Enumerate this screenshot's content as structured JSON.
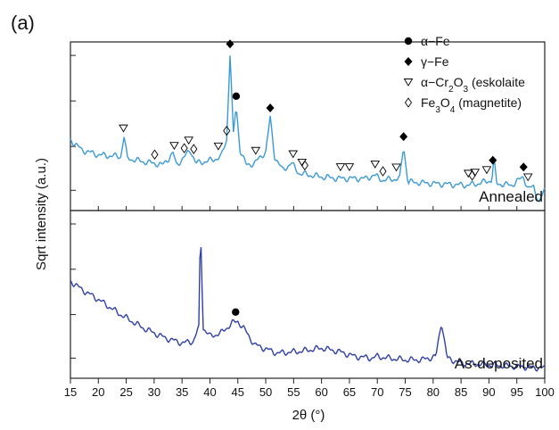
{
  "figure": {
    "panel_label": "(a)"
  },
  "chart_data": {
    "type": "line",
    "xlabel": "2θ (°)",
    "ylabel": "Sqrt intensity (a.u.)",
    "xlim": [
      15,
      100
    ],
    "x_ticks": [
      15,
      20,
      25,
      30,
      35,
      40,
      45,
      50,
      55,
      60,
      65,
      70,
      75,
      80,
      85,
      90,
      95,
      100
    ],
    "grid": false,
    "legend_position": "top-right",
    "panels": [
      {
        "name": "Annealed",
        "color": "#3b9ad6",
        "series_points": [
          [
            15,
            0.42
          ],
          [
            17,
            0.36
          ],
          [
            20,
            0.33
          ],
          [
            24,
            0.32
          ],
          [
            24.6,
            0.44
          ],
          [
            25.2,
            0.31
          ],
          [
            28,
            0.29
          ],
          [
            30,
            0.28
          ],
          [
            31.5,
            0.27
          ],
          [
            33.4,
            0.34
          ],
          [
            34,
            0.27
          ],
          [
            35.5,
            0.32
          ],
          [
            36.5,
            0.36
          ],
          [
            37.5,
            0.28
          ],
          [
            39,
            0.29
          ],
          [
            40.5,
            0.3
          ],
          [
            42,
            0.32
          ],
          [
            43,
            0.42
          ],
          [
            43.6,
            0.93
          ],
          [
            44.2,
            0.45
          ],
          [
            44.7,
            0.62
          ],
          [
            45.4,
            0.36
          ],
          [
            46.5,
            0.27
          ],
          [
            48,
            0.28
          ],
          [
            50,
            0.35
          ],
          [
            50.8,
            0.55
          ],
          [
            51.6,
            0.32
          ],
          [
            53,
            0.24
          ],
          [
            54.6,
            0.28
          ],
          [
            56,
            0.22
          ],
          [
            60,
            0.2
          ],
          [
            63,
            0.19
          ],
          [
            65,
            0.19
          ],
          [
            68,
            0.19
          ],
          [
            69.4,
            0.21
          ],
          [
            71,
            0.18
          ],
          [
            74,
            0.19
          ],
          [
            74.7,
            0.38
          ],
          [
            75.5,
            0.17
          ],
          [
            80,
            0.16
          ],
          [
            86,
            0.15
          ],
          [
            88,
            0.16
          ],
          [
            90.5,
            0.18
          ],
          [
            90.9,
            0.3
          ],
          [
            91.4,
            0.16
          ],
          [
            94,
            0.15
          ],
          [
            96.2,
            0.2
          ],
          [
            97,
            0.13
          ],
          [
            98,
            0.14
          ],
          [
            99,
            0.05
          ],
          [
            100,
            0.12
          ]
        ],
        "markers": {
          "alpha_fe": [
            44.7
          ],
          "gamma_fe": [
            43.6,
            50.8,
            74.7,
            90.7,
            96.2
          ],
          "eskolaite": [
            24.5,
            33.6,
            36.2,
            41.5,
            48.2,
            54.9,
            56.5,
            63.4,
            65.0,
            69.6,
            73.4,
            86.3,
            87.5,
            89.6,
            97.0
          ],
          "magnetite": [
            30.1,
            35.4,
            37.1,
            43.0,
            57.0,
            71.0,
            87.0
          ]
        }
      },
      {
        "name": "As-deposited",
        "color": "#3040a6",
        "series_points": [
          [
            15,
            0.58
          ],
          [
            17,
            0.53
          ],
          [
            20,
            0.47
          ],
          [
            24,
            0.38
          ],
          [
            28,
            0.3
          ],
          [
            32,
            0.24
          ],
          [
            35,
            0.21
          ],
          [
            37,
            0.22
          ],
          [
            38,
            0.3
          ],
          [
            38.3,
            0.91
          ],
          [
            38.8,
            0.3
          ],
          [
            40,
            0.25
          ],
          [
            42,
            0.27
          ],
          [
            44,
            0.33
          ],
          [
            45,
            0.34
          ],
          [
            46,
            0.3
          ],
          [
            48,
            0.2
          ],
          [
            52,
            0.15
          ],
          [
            56,
            0.16
          ],
          [
            60,
            0.18
          ],
          [
            63,
            0.16
          ],
          [
            66,
            0.13
          ],
          [
            69,
            0.12
          ],
          [
            70,
            0.13
          ],
          [
            72,
            0.12
          ],
          [
            75,
            0.11
          ],
          [
            78,
            0.11
          ],
          [
            80.5,
            0.13
          ],
          [
            81.5,
            0.34
          ],
          [
            82.5,
            0.12
          ],
          [
            85,
            0.09
          ],
          [
            90,
            0.08
          ],
          [
            95,
            0.07
          ],
          [
            100,
            0.06
          ]
        ],
        "markers": {
          "alpha_fe": [
            44.6
          ]
        }
      }
    ],
    "legend": [
      {
        "symbol": "filled-circle",
        "label": "α−Fe"
      },
      {
        "symbol": "filled-diamond",
        "label": "γ−Fe"
      },
      {
        "symbol": "open-triangle-down",
        "label_parts": [
          "α−Cr",
          "2",
          "O",
          "3",
          " (eskolaite"
        ]
      },
      {
        "symbol": "open-diamond",
        "label_parts": [
          "Fe",
          "3",
          "O",
          "4",
          " (magnetite)"
        ]
      }
    ]
  }
}
